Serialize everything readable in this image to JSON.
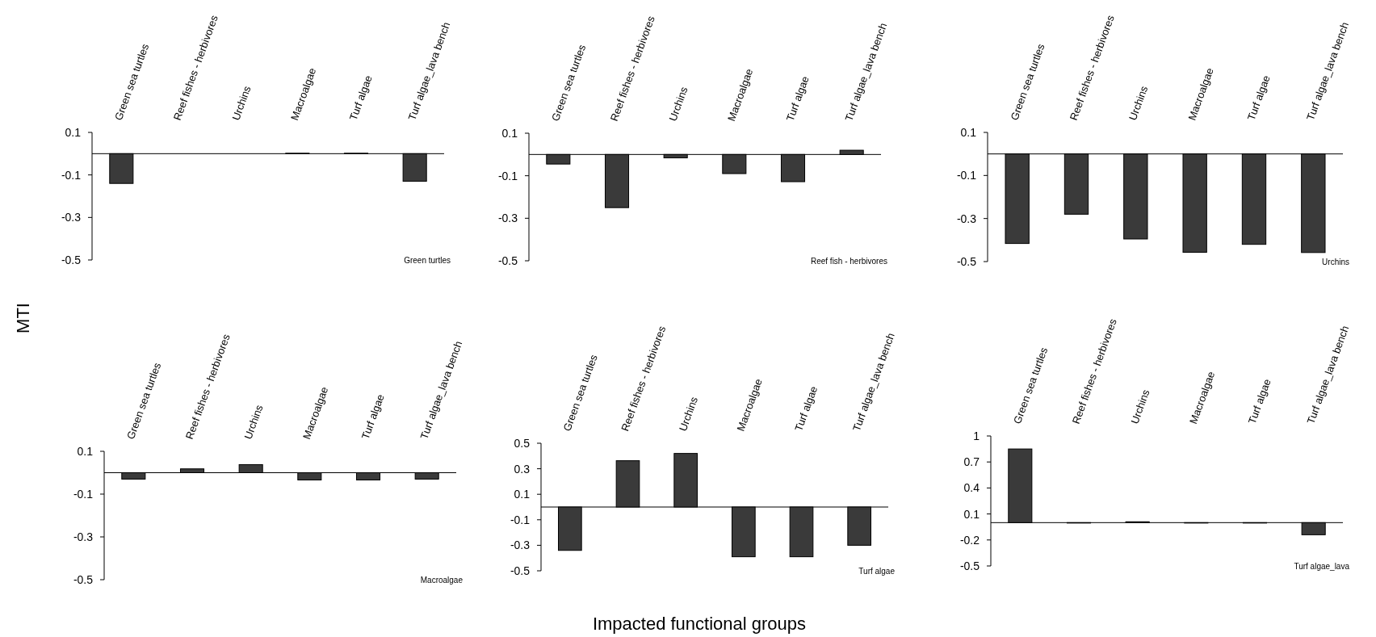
{
  "chart_data": [
    {
      "type": "bar",
      "title": "Green turtles",
      "ylabel": "MTI",
      "categories": [
        "Green sea turtles",
        "Reef fishes - herbivores",
        "Urchins",
        "Macroalgae",
        "Turf algae",
        "Turf algae_lava bench"
      ],
      "values": [
        -0.14,
        0,
        0,
        0.002,
        0.002,
        -0.13
      ],
      "color": "#3a3a3a",
      "ylim": [
        -0.5,
        0.1
      ],
      "yticks": [
        -0.5,
        -0.3,
        -0.1,
        0.1
      ]
    },
    {
      "type": "bar",
      "title": "Reef fish - herbivores",
      "categories": [
        "Green sea turtles",
        "Reef fishes - herbivores",
        "Urchins",
        "Macroalgae",
        "Turf algae",
        "Turf algae_lava bench"
      ],
      "values": [
        -0.045,
        -0.25,
        -0.016,
        -0.09,
        -0.128,
        0.02
      ],
      "color": "#3a3a3a",
      "ylim": [
        -0.5,
        0.1
      ],
      "yticks": [
        -0.5,
        -0.3,
        -0.1,
        0.1
      ]
    },
    {
      "type": "bar",
      "title": "Urchins",
      "categories": [
        "Green sea turtles",
        "Reef fishes - herbivores",
        "Urchins",
        "Macroalgae",
        "Turf algae",
        "Turf algae_lava bench"
      ],
      "values": [
        -0.416,
        -0.28,
        -0.395,
        -0.457,
        -0.42,
        -0.458
      ],
      "color": "#3a3a3a",
      "ylim": [
        -0.5,
        0.1
      ],
      "yticks": [
        -0.5,
        -0.3,
        -0.1,
        0.1
      ]
    },
    {
      "type": "bar",
      "title": "Macroalgae",
      "categories": [
        "Green sea turtles",
        "Reef fishes - herbivores",
        "Urchins",
        "Macroalgae",
        "Turf algae",
        "Turf algae_lava bench"
      ],
      "values": [
        -0.03,
        0.018,
        0.038,
        -0.034,
        -0.034,
        -0.03
      ],
      "color": "#3a3a3a",
      "ylim": [
        -0.5,
        0.1
      ],
      "yticks": [
        -0.5,
        -0.3,
        -0.1,
        0.1
      ]
    },
    {
      "type": "bar",
      "title": "Turf algae",
      "xlabel": "Impacted functional groups",
      "categories": [
        "Green sea turtles",
        "Reef fishes - herbivores",
        "Urchins",
        "Macroalgae",
        "Turf algae",
        "Turf algae_lava bench"
      ],
      "values": [
        -0.34,
        0.363,
        0.42,
        -0.39,
        -0.39,
        -0.3
      ],
      "color": "#3a3a3a",
      "ylim": [
        -0.5,
        0.5
      ],
      "yticks": [
        -0.5,
        -0.3,
        -0.1,
        0.1,
        0.3,
        0.5
      ]
    },
    {
      "type": "bar",
      "title": "Turf algae_lava",
      "categories": [
        "Green sea turtles",
        "Reef fishes - herbivores",
        "Urchins",
        "Macroalgae",
        "Turf algae",
        "Turf algae_lava bench"
      ],
      "values": [
        0.85,
        -0.005,
        0.01,
        -0.005,
        -0.005,
        -0.14
      ],
      "color": "#3a3a3a",
      "ylim": [
        -0.5,
        1
      ],
      "yticks": [
        -0.5,
        -0.2,
        0.1,
        0.4,
        0.7,
        1
      ]
    }
  ]
}
